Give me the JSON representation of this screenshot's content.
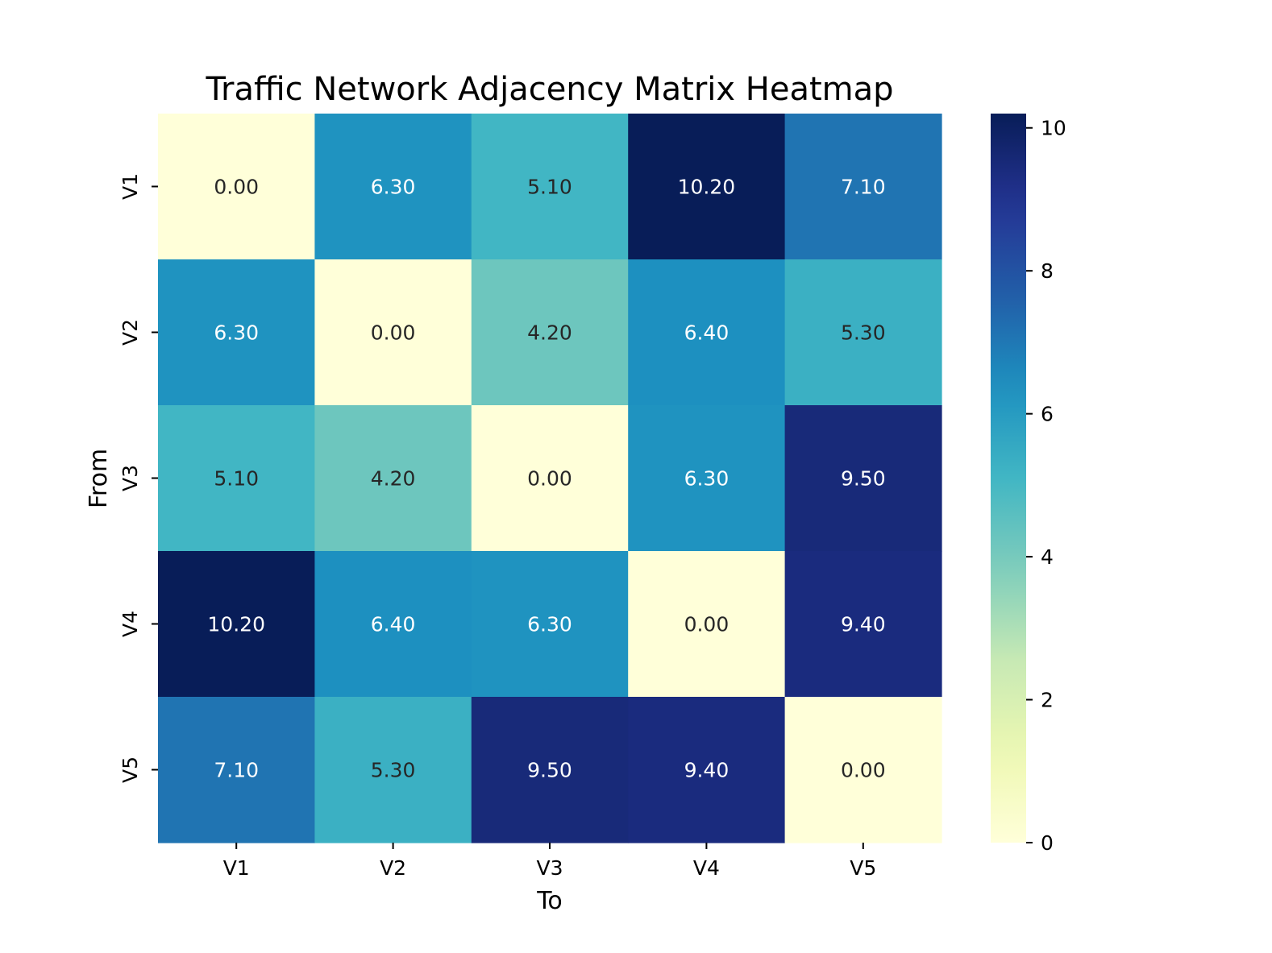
{
  "chart_data": {
    "type": "heatmap",
    "title": "Traffic Network Adjacency Matrix Heatmap",
    "xlabel": "To",
    "ylabel": "From",
    "x_categories": [
      "V1",
      "V2",
      "V3",
      "V4",
      "V5"
    ],
    "y_categories": [
      "V1",
      "V2",
      "V3",
      "V4",
      "V5"
    ],
    "values": [
      [
        0.0,
        6.3,
        5.1,
        10.2,
        7.1
      ],
      [
        6.3,
        0.0,
        4.2,
        6.4,
        5.3
      ],
      [
        5.1,
        4.2,
        0.0,
        6.3,
        9.5
      ],
      [
        10.2,
        6.4,
        6.3,
        0.0,
        9.4
      ],
      [
        7.1,
        5.3,
        9.5,
        9.4,
        0.0
      ]
    ],
    "value_format": "0.00",
    "colormap": "YlGnBu",
    "color_range": [
      0,
      10.2
    ],
    "colorbar": {
      "ticks": [
        0,
        2,
        4,
        6,
        8,
        10
      ],
      "tick_labels": [
        "0",
        "2",
        "4",
        "6",
        "8",
        "10"
      ],
      "position": "right"
    },
    "grid": false
  }
}
